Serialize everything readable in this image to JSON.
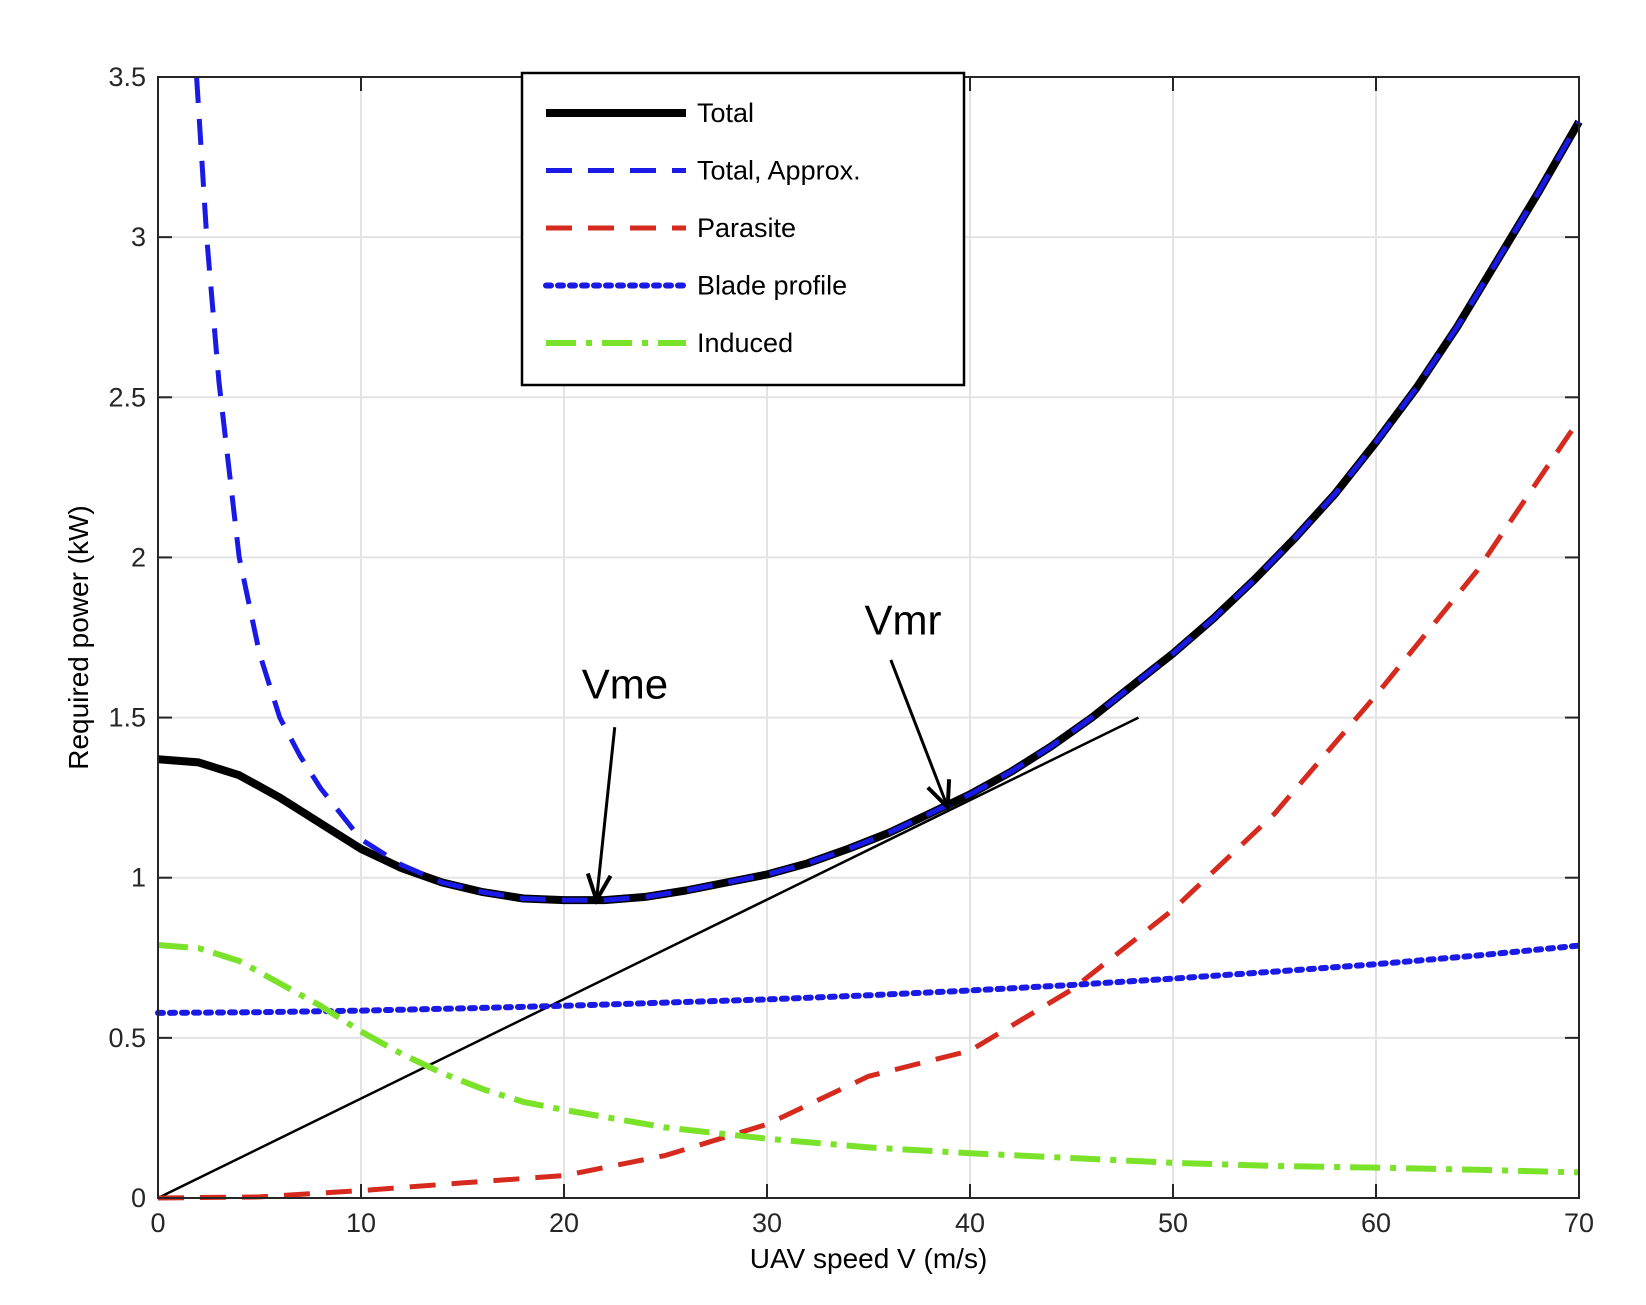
{
  "chart_data": {
    "type": "line",
    "xlabel": "UAV speed V (m/s)",
    "ylabel": "Required power (kW)",
    "xlim": [
      0,
      70
    ],
    "ylim": [
      0,
      3.5
    ],
    "xticks": [
      "0",
      "10",
      "20",
      "30",
      "40",
      "50",
      "60",
      "70"
    ],
    "yticks": [
      "0",
      "0.5",
      "1",
      "1.5",
      "2",
      "2.5",
      "3",
      "3.5"
    ],
    "grid": true,
    "legend_position": "top-center",
    "series": [
      {
        "name": "Total",
        "color": "#000000",
        "style": "solid-thick",
        "x": [
          0,
          2,
          4,
          6,
          8,
          10,
          12,
          14,
          16,
          18,
          20,
          22,
          24,
          26,
          28,
          30,
          32,
          34,
          36,
          38,
          40,
          42,
          44,
          46,
          48,
          50,
          52,
          54,
          56,
          58,
          60,
          62,
          64,
          66,
          68,
          70
        ],
        "y": [
          1.37,
          1.36,
          1.32,
          1.25,
          1.17,
          1.09,
          1.03,
          0.985,
          0.955,
          0.935,
          0.93,
          0.93,
          0.94,
          0.96,
          0.985,
          1.01,
          1.045,
          1.09,
          1.14,
          1.2,
          1.26,
          1.33,
          1.41,
          1.5,
          1.6,
          1.7,
          1.81,
          1.93,
          2.06,
          2.2,
          2.36,
          2.53,
          2.72,
          2.93,
          3.14,
          3.36
        ]
      },
      {
        "name": "Total, Approx.",
        "color": "#1a1ae6",
        "style": "dashed",
        "x": [
          1.9,
          2.4,
          3,
          4,
          5,
          6,
          7,
          8,
          10,
          12,
          14,
          16,
          18,
          20,
          22,
          24,
          26,
          28,
          30,
          32,
          34,
          36,
          38,
          40,
          42,
          44,
          46,
          48,
          50,
          52,
          54,
          56,
          58,
          60,
          62,
          64,
          66,
          68,
          70
        ],
        "y": [
          3.5,
          3.0,
          2.55,
          2.0,
          1.7,
          1.5,
          1.38,
          1.28,
          1.12,
          1.04,
          0.985,
          0.955,
          0.935,
          0.93,
          0.93,
          0.94,
          0.96,
          0.985,
          1.01,
          1.045,
          1.09,
          1.14,
          1.2,
          1.26,
          1.33,
          1.41,
          1.5,
          1.6,
          1.7,
          1.81,
          1.93,
          2.06,
          2.2,
          2.36,
          2.53,
          2.72,
          2.93,
          3.14,
          3.36
        ]
      },
      {
        "name": "Parasite",
        "color": "#d62a1e",
        "style": "dashed",
        "x": [
          0,
          5,
          10,
          15,
          20,
          25,
          30,
          35,
          40,
          45,
          50,
          55,
          60,
          65,
          70
        ],
        "y": [
          0,
          0.0035,
          0.023,
          0.047,
          0.07,
          0.133,
          0.23,
          0.38,
          0.46,
          0.65,
          0.9,
          1.2,
          1.57,
          1.96,
          2.43
        ]
      },
      {
        "name": "Blade profile",
        "color": "#1a1ae6",
        "style": "dotted",
        "x": [
          0,
          5,
          10,
          15,
          20,
          25,
          30,
          35,
          40,
          45,
          50,
          55,
          60,
          65,
          70
        ],
        "y": [
          0.578,
          0.58,
          0.585,
          0.592,
          0.6,
          0.61,
          0.62,
          0.633,
          0.648,
          0.665,
          0.685,
          0.707,
          0.73,
          0.757,
          0.788
        ]
      },
      {
        "name": "Induced",
        "color": "#7be22a",
        "style": "dashdot",
        "x": [
          0,
          2,
          4,
          6,
          8,
          10,
          12,
          14,
          16,
          18,
          20,
          25,
          30,
          35,
          40,
          45,
          50,
          55,
          60,
          65,
          70
        ],
        "y": [
          0.79,
          0.78,
          0.74,
          0.67,
          0.6,
          0.52,
          0.45,
          0.39,
          0.34,
          0.3,
          0.275,
          0.22,
          0.185,
          0.158,
          0.14,
          0.125,
          0.11,
          0.1,
          0.095,
          0.088,
          0.08
        ]
      }
    ],
    "tangent_line": {
      "x": [
        0,
        48.3
      ],
      "y": [
        0,
        1.5
      ],
      "color": "#000000"
    },
    "annotations": [
      {
        "text": "Vme",
        "label_x": 23,
        "label_y": 1.56,
        "arrow_from": [
          22.5,
          1.47
        ],
        "arrow_to": [
          21.6,
          0.93
        ]
      },
      {
        "text": "Vmr",
        "label_x": 36.7,
        "label_y": 1.76,
        "arrow_from": [
          36.1,
          1.68
        ],
        "arrow_to": [
          38.9,
          1.22
        ]
      }
    ]
  }
}
